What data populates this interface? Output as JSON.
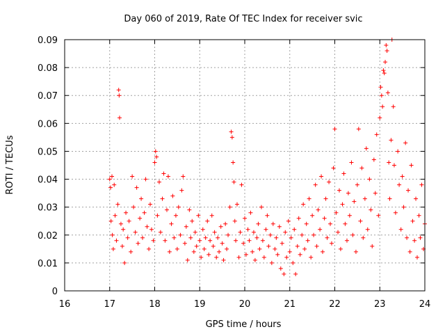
{
  "chart_data": {
    "type": "scatter",
    "title": "Day 060 of 2019, Rate Of TEC Index for receiver svic",
    "xlabel": "GPS time / hours",
    "ylabel": "ROTI / TECUs",
    "xlim": [
      16,
      24
    ],
    "ylim": [
      0,
      0.09
    ],
    "x_ticks": [
      "16",
      "17",
      "18",
      "19",
      "20",
      "21",
      "22",
      "23",
      "24"
    ],
    "y_ticks": [
      "0",
      "0.01",
      "0.02",
      "0.03",
      "0.04",
      "0.05",
      "0.06",
      "0.07",
      "0.08",
      "0.09"
    ],
    "grid": true,
    "marker": "+",
    "color": "#ff0000",
    "series": [
      {
        "name": "ROTI",
        "points": [
          [
            17.0,
            0.04
          ],
          [
            17.02,
            0.037
          ],
          [
            17.03,
            0.025
          ],
          [
            17.05,
            0.041
          ],
          [
            17.06,
            0.02
          ],
          [
            17.08,
            0.015
          ],
          [
            17.1,
            0.038
          ],
          [
            17.12,
            0.027
          ],
          [
            17.15,
            0.018
          ],
          [
            17.18,
            0.031
          ],
          [
            17.2,
            0.072
          ],
          [
            17.21,
            0.07
          ],
          [
            17.22,
            0.062
          ],
          [
            17.25,
            0.024
          ],
          [
            17.28,
            0.016
          ],
          [
            17.3,
            0.022
          ],
          [
            17.33,
            0.01
          ],
          [
            17.36,
            0.028
          ],
          [
            17.4,
            0.019
          ],
          [
            17.43,
            0.025
          ],
          [
            17.47,
            0.014
          ],
          [
            17.5,
            0.041
          ],
          [
            17.53,
            0.03
          ],
          [
            17.57,
            0.021
          ],
          [
            17.6,
            0.037
          ],
          [
            17.63,
            0.017
          ],
          [
            17.67,
            0.026
          ],
          [
            17.7,
            0.033
          ],
          [
            17.73,
            0.019
          ],
          [
            17.77,
            0.028
          ],
          [
            17.8,
            0.04
          ],
          [
            17.83,
            0.023
          ],
          [
            17.87,
            0.015
          ],
          [
            17.9,
            0.031
          ],
          [
            17.93,
            0.022
          ],
          [
            17.97,
            0.018
          ],
          [
            18.0,
            0.046
          ],
          [
            18.02,
            0.05
          ],
          [
            18.04,
            0.048
          ],
          [
            18.06,
            0.027
          ],
          [
            18.1,
            0.039
          ],
          [
            18.13,
            0.021
          ],
          [
            18.17,
            0.033
          ],
          [
            18.2,
            0.042
          ],
          [
            18.23,
            0.018
          ],
          [
            18.27,
            0.029
          ],
          [
            18.3,
            0.041
          ],
          [
            18.33,
            0.014
          ],
          [
            18.37,
            0.024
          ],
          [
            18.4,
            0.034
          ],
          [
            18.43,
            0.019
          ],
          [
            18.47,
            0.027
          ],
          [
            18.5,
            0.015
          ],
          [
            18.53,
            0.03
          ],
          [
            18.57,
            0.02
          ],
          [
            18.6,
            0.036
          ],
          [
            18.63,
            0.041
          ],
          [
            18.67,
            0.017
          ],
          [
            18.7,
            0.023
          ],
          [
            18.73,
            0.011
          ],
          [
            18.77,
            0.029
          ],
          [
            18.8,
            0.019
          ],
          [
            18.83,
            0.025
          ],
          [
            18.87,
            0.014
          ],
          [
            18.9,
            0.021
          ],
          [
            18.93,
            0.016
          ],
          [
            18.97,
            0.027
          ],
          [
            19.0,
            0.018
          ],
          [
            19.03,
            0.012
          ],
          [
            19.07,
            0.022
          ],
          [
            19.1,
            0.015
          ],
          [
            19.13,
            0.019
          ],
          [
            19.17,
            0.025
          ],
          [
            19.2,
            0.013
          ],
          [
            19.23,
            0.018
          ],
          [
            19.27,
            0.027
          ],
          [
            19.3,
            0.016
          ],
          [
            19.33,
            0.021
          ],
          [
            19.37,
            0.012
          ],
          [
            19.4,
            0.019
          ],
          [
            19.43,
            0.014
          ],
          [
            19.47,
            0.023
          ],
          [
            19.5,
            0.017
          ],
          [
            19.53,
            0.011
          ],
          [
            19.57,
            0.024
          ],
          [
            19.6,
            0.015
          ],
          [
            19.63,
            0.02
          ],
          [
            19.67,
            0.03
          ],
          [
            19.7,
            0.057
          ],
          [
            19.72,
            0.055
          ],
          [
            19.74,
            0.046
          ],
          [
            19.76,
            0.039
          ],
          [
            19.78,
            0.025
          ],
          [
            19.8,
            0.018
          ],
          [
            19.83,
            0.031
          ],
          [
            19.87,
            0.012
          ],
          [
            19.9,
            0.021
          ],
          [
            19.93,
            0.038
          ],
          [
            19.97,
            0.017
          ],
          [
            20.0,
            0.026
          ],
          [
            20.03,
            0.013
          ],
          [
            20.07,
            0.022
          ],
          [
            20.1,
            0.018
          ],
          [
            20.13,
            0.028
          ],
          [
            20.17,
            0.014
          ],
          [
            20.2,
            0.021
          ],
          [
            20.23,
            0.011
          ],
          [
            20.27,
            0.019
          ],
          [
            20.3,
            0.024
          ],
          [
            20.33,
            0.015
          ],
          [
            20.37,
            0.03
          ],
          [
            20.4,
            0.018
          ],
          [
            20.43,
            0.012
          ],
          [
            20.47,
            0.022
          ],
          [
            20.5,
            0.027
          ],
          [
            20.53,
            0.016
          ],
          [
            20.57,
            0.02
          ],
          [
            20.6,
            0.01
          ],
          [
            20.63,
            0.024
          ],
          [
            20.67,
            0.015
          ],
          [
            20.7,
            0.019
          ],
          [
            20.73,
            0.013
          ],
          [
            20.77,
            0.023
          ],
          [
            20.8,
            0.008
          ],
          [
            20.83,
            0.017
          ],
          [
            20.87,
            0.006
          ],
          [
            20.9,
            0.021
          ],
          [
            20.93,
            0.012
          ],
          [
            20.97,
            0.025
          ],
          [
            21.0,
            0.014
          ],
          [
            21.03,
            0.019
          ],
          [
            21.07,
            0.01
          ],
          [
            21.1,
            0.022
          ],
          [
            21.13,
            0.006
          ],
          [
            21.17,
            0.016
          ],
          [
            21.2,
            0.026
          ],
          [
            21.23,
            0.013
          ],
          [
            21.27,
            0.02
          ],
          [
            21.3,
            0.031
          ],
          [
            21.33,
            0.015
          ],
          [
            21.37,
            0.024
          ],
          [
            21.4,
            0.018
          ],
          [
            21.43,
            0.033
          ],
          [
            21.47,
            0.012
          ],
          [
            21.5,
            0.027
          ],
          [
            21.53,
            0.02
          ],
          [
            21.57,
            0.038
          ],
          [
            21.6,
            0.016
          ],
          [
            21.63,
            0.029
          ],
          [
            21.67,
            0.022
          ],
          [
            21.7,
            0.041
          ],
          [
            21.73,
            0.014
          ],
          [
            21.77,
            0.026
          ],
          [
            21.8,
            0.033
          ],
          [
            21.83,
            0.019
          ],
          [
            21.87,
            0.039
          ],
          [
            21.9,
            0.024
          ],
          [
            21.93,
            0.017
          ],
          [
            21.97,
            0.044
          ],
          [
            22.0,
            0.058
          ],
          [
            22.03,
            0.028
          ],
          [
            22.07,
            0.021
          ],
          [
            22.1,
            0.036
          ],
          [
            22.13,
            0.015
          ],
          [
            22.17,
            0.031
          ],
          [
            22.2,
            0.042
          ],
          [
            22.23,
            0.024
          ],
          [
            22.27,
            0.018
          ],
          [
            22.3,
            0.035
          ],
          [
            22.33,
            0.027
          ],
          [
            22.37,
            0.046
          ],
          [
            22.4,
            0.02
          ],
          [
            22.43,
            0.032
          ],
          [
            22.47,
            0.014
          ],
          [
            22.5,
            0.038
          ],
          [
            22.53,
            0.058
          ],
          [
            22.57,
            0.025
          ],
          [
            22.6,
            0.044
          ],
          [
            22.63,
            0.019
          ],
          [
            22.67,
            0.033
          ],
          [
            22.7,
            0.051
          ],
          [
            22.73,
            0.022
          ],
          [
            22.77,
            0.04
          ],
          [
            22.8,
            0.029
          ],
          [
            22.83,
            0.016
          ],
          [
            22.87,
            0.047
          ],
          [
            22.9,
            0.035
          ],
          [
            22.93,
            0.056
          ],
          [
            22.97,
            0.027
          ],
          [
            23.0,
            0.062
          ],
          [
            23.02,
            0.073
          ],
          [
            23.04,
            0.07
          ],
          [
            23.06,
            0.066
          ],
          [
            23.08,
            0.079
          ],
          [
            23.1,
            0.078
          ],
          [
            23.12,
            0.082
          ],
          [
            23.14,
            0.088
          ],
          [
            23.16,
            0.086
          ],
          [
            23.18,
            0.071
          ],
          [
            23.2,
            0.046
          ],
          [
            23.22,
            0.033
          ],
          [
            23.25,
            0.054
          ],
          [
            23.27,
            0.09
          ],
          [
            23.3,
            0.066
          ],
          [
            23.32,
            0.045
          ],
          [
            23.35,
            0.028
          ],
          [
            23.4,
            0.05
          ],
          [
            23.43,
            0.038
          ],
          [
            23.47,
            0.022
          ],
          [
            23.5,
            0.041
          ],
          [
            23.53,
            0.03
          ],
          [
            23.57,
            0.053
          ],
          [
            23.6,
            0.019
          ],
          [
            23.63,
            0.036
          ],
          [
            23.67,
            0.014
          ],
          [
            23.7,
            0.045
          ],
          [
            23.73,
            0.025
          ],
          [
            23.77,
            0.018
          ],
          [
            23.8,
            0.033
          ],
          [
            23.83,
            0.012
          ],
          [
            23.87,
            0.027
          ],
          [
            23.9,
            0.019
          ],
          [
            23.93,
            0.038
          ],
          [
            23.97,
            0.015
          ],
          [
            24.0,
            0.024
          ]
        ]
      }
    ]
  }
}
